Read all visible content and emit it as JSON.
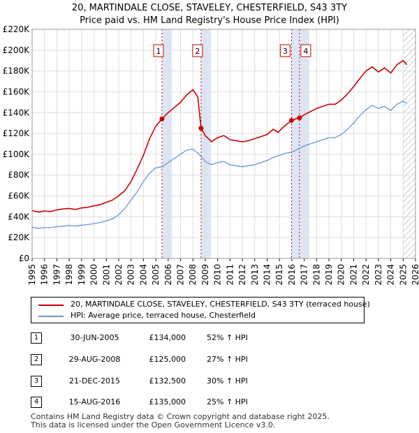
{
  "chart_data": {
    "type": "line",
    "title": "20, MARTINDALE CLOSE, STAVELEY, CHESTERFIELD, S43 3TY",
    "subtitle": "Price paid vs. HM Land Registry's House Price Index (HPI)",
    "xlabel": "",
    "ylabel": "",
    "xlim": [
      1995,
      2026
    ],
    "ylim": [
      0,
      220000
    ],
    "x_ticks": [
      "1995",
      "1996",
      "1997",
      "1998",
      "1999",
      "2000",
      "2001",
      "2002",
      "2003",
      "2004",
      "2005",
      "2006",
      "2007",
      "2008",
      "2009",
      "2010",
      "2011",
      "2012",
      "2013",
      "2014",
      "2015",
      "2016",
      "2017",
      "2018",
      "2019",
      "2020",
      "2021",
      "2022",
      "2023",
      "2024",
      "2025",
      "2026"
    ],
    "y_ticks": [
      {
        "value": 0,
        "label": "£0"
      },
      {
        "value": 20000,
        "label": "£20K"
      },
      {
        "value": 40000,
        "label": "£40K"
      },
      {
        "value": 60000,
        "label": "£60K"
      },
      {
        "value": 80000,
        "label": "£80K"
      },
      {
        "value": 100000,
        "label": "£100K"
      },
      {
        "value": 120000,
        "label": "£120K"
      },
      {
        "value": 140000,
        "label": "£140K"
      },
      {
        "value": 160000,
        "label": "£160K"
      },
      {
        "value": 180000,
        "label": "£180K"
      },
      {
        "value": 200000,
        "label": "£200K"
      },
      {
        "value": 220000,
        "label": "£220K"
      }
    ],
    "grid": true,
    "series": [
      {
        "name": "20, MARTINDALE CLOSE, STAVELEY, CHESTERFIELD, S43 3TY (terraced house)",
        "color": "#cc0000",
        "points": [
          [
            1995.0,
            46000
          ],
          [
            1995.5,
            44500
          ],
          [
            1996.0,
            45500
          ],
          [
            1996.5,
            45000
          ],
          [
            1997.0,
            46500
          ],
          [
            1997.5,
            47500
          ],
          [
            1998.0,
            48000
          ],
          [
            1998.5,
            47000
          ],
          [
            1999.0,
            48500
          ],
          [
            1999.5,
            49000
          ],
          [
            2000.0,
            50500
          ],
          [
            2000.5,
            51500
          ],
          [
            2001.0,
            54000
          ],
          [
            2001.5,
            56000
          ],
          [
            2002.0,
            60000
          ],
          [
            2002.5,
            65000
          ],
          [
            2003.0,
            74000
          ],
          [
            2003.5,
            86000
          ],
          [
            2004.0,
            99000
          ],
          [
            2004.5,
            115000
          ],
          [
            2005.0,
            127000
          ],
          [
            2005.5,
            134000
          ],
          [
            2006.0,
            140000
          ],
          [
            2006.5,
            145000
          ],
          [
            2007.0,
            150000
          ],
          [
            2007.5,
            157000
          ],
          [
            2008.0,
            162000
          ],
          [
            2008.4,
            155000
          ],
          [
            2008.66,
            125000
          ],
          [
            2009.0,
            118000
          ],
          [
            2009.5,
            112000
          ],
          [
            2010.0,
            116000
          ],
          [
            2010.5,
            118000
          ],
          [
            2011.0,
            114000
          ],
          [
            2011.5,
            113000
          ],
          [
            2012.0,
            112000
          ],
          [
            2012.5,
            113000
          ],
          [
            2013.0,
            115000
          ],
          [
            2013.5,
            117000
          ],
          [
            2014.0,
            119000
          ],
          [
            2014.5,
            124000
          ],
          [
            2014.9,
            121000
          ],
          [
            2015.3,
            126000
          ],
          [
            2015.97,
            132500
          ],
          [
            2016.3,
            134000
          ],
          [
            2016.62,
            135000
          ],
          [
            2017.0,
            138000
          ],
          [
            2017.5,
            141000
          ],
          [
            2018.0,
            144000
          ],
          [
            2018.5,
            146000
          ],
          [
            2019.0,
            148000
          ],
          [
            2019.5,
            148000
          ],
          [
            2020.0,
            152000
          ],
          [
            2020.5,
            158000
          ],
          [
            2021.0,
            165000
          ],
          [
            2021.5,
            173000
          ],
          [
            2022.0,
            180000
          ],
          [
            2022.5,
            184000
          ],
          [
            2023.0,
            179000
          ],
          [
            2023.5,
            183000
          ],
          [
            2024.0,
            178000
          ],
          [
            2024.5,
            186000
          ],
          [
            2025.0,
            190000
          ],
          [
            2025.3,
            186000
          ]
        ]
      },
      {
        "name": "HPI: Average price, terraced house, Chesterfield",
        "color": "#6a96cc",
        "points": [
          [
            1995.0,
            30000
          ],
          [
            1995.5,
            29000
          ],
          [
            1996.0,
            29500
          ],
          [
            1996.5,
            29500
          ],
          [
            1997.0,
            30500
          ],
          [
            1997.5,
            31000
          ],
          [
            1998.0,
            31500
          ],
          [
            1998.5,
            31000
          ],
          [
            1999.0,
            32000
          ],
          [
            1999.5,
            32500
          ],
          [
            2000.0,
            33500
          ],
          [
            2000.5,
            34500
          ],
          [
            2001.0,
            36000
          ],
          [
            2001.5,
            38000
          ],
          [
            2002.0,
            42000
          ],
          [
            2002.5,
            48000
          ],
          [
            2003.0,
            56000
          ],
          [
            2003.5,
            64000
          ],
          [
            2004.0,
            74000
          ],
          [
            2004.5,
            82000
          ],
          [
            2005.0,
            87000
          ],
          [
            2005.5,
            88000
          ],
          [
            2006.0,
            92000
          ],
          [
            2006.5,
            96000
          ],
          [
            2007.0,
            100000
          ],
          [
            2007.5,
            104000
          ],
          [
            2008.0,
            105000
          ],
          [
            2008.5,
            100000
          ],
          [
            2009.0,
            93000
          ],
          [
            2009.5,
            90000
          ],
          [
            2010.0,
            92000
          ],
          [
            2010.5,
            93000
          ],
          [
            2011.0,
            90000
          ],
          [
            2011.5,
            89000
          ],
          [
            2012.0,
            88000
          ],
          [
            2012.5,
            89000
          ],
          [
            2013.0,
            90000
          ],
          [
            2013.5,
            92000
          ],
          [
            2014.0,
            94000
          ],
          [
            2014.5,
            97000
          ],
          [
            2015.0,
            99000
          ],
          [
            2015.5,
            101000
          ],
          [
            2016.0,
            102000
          ],
          [
            2016.5,
            105000
          ],
          [
            2017.0,
            108000
          ],
          [
            2017.5,
            110000
          ],
          [
            2018.0,
            112000
          ],
          [
            2018.5,
            114000
          ],
          [
            2019.0,
            116000
          ],
          [
            2019.5,
            116000
          ],
          [
            2020.0,
            119000
          ],
          [
            2020.5,
            124000
          ],
          [
            2021.0,
            130000
          ],
          [
            2021.5,
            137000
          ],
          [
            2022.0,
            143000
          ],
          [
            2022.5,
            147000
          ],
          [
            2023.0,
            144000
          ],
          [
            2023.5,
            146000
          ],
          [
            2024.0,
            142000
          ],
          [
            2024.5,
            148000
          ],
          [
            2025.0,
            151000
          ],
          [
            2025.3,
            149000
          ]
        ]
      }
    ],
    "sales": [
      {
        "id": "1",
        "x": 2005.5,
        "price": 134000
      },
      {
        "id": "2",
        "x": 2008.66,
        "price": 125000
      },
      {
        "id": "3",
        "x": 2015.97,
        "price": 132500
      },
      {
        "id": "4",
        "x": 2016.62,
        "price": 135000
      }
    ],
    "sale_band_color": "#dde6f7",
    "sale_line_color": "#cc0000",
    "forecast_start": 2025.0
  },
  "legend": {
    "property": "20, MARTINDALE CLOSE, STAVELEY, CHESTERFIELD, S43 3TY (terraced house)",
    "hpi": "HPI: Average price, terraced house, Chesterfield"
  },
  "sales_table": [
    {
      "id": "1",
      "date": "30-JUN-2005",
      "price": "£134,000",
      "delta": "52% ↑ HPI"
    },
    {
      "id": "2",
      "date": "29-AUG-2008",
      "price": "£125,000",
      "delta": "27% ↑ HPI"
    },
    {
      "id": "3",
      "date": "21-DEC-2015",
      "price": "£132,500",
      "delta": "30% ↑ HPI"
    },
    {
      "id": "4",
      "date": "15-AUG-2016",
      "price": "£135,000",
      "delta": "25% ↑ HPI"
    }
  ],
  "footer": {
    "line1": "Contains HM Land Registry data © Crown copyright and database right 2025.",
    "line2": "This data is licensed under the Open Government Licence v3.0."
  },
  "colors": {
    "property_line": "#cc0000",
    "hpi_line": "#6a96cc",
    "grid": "#dddddd"
  }
}
